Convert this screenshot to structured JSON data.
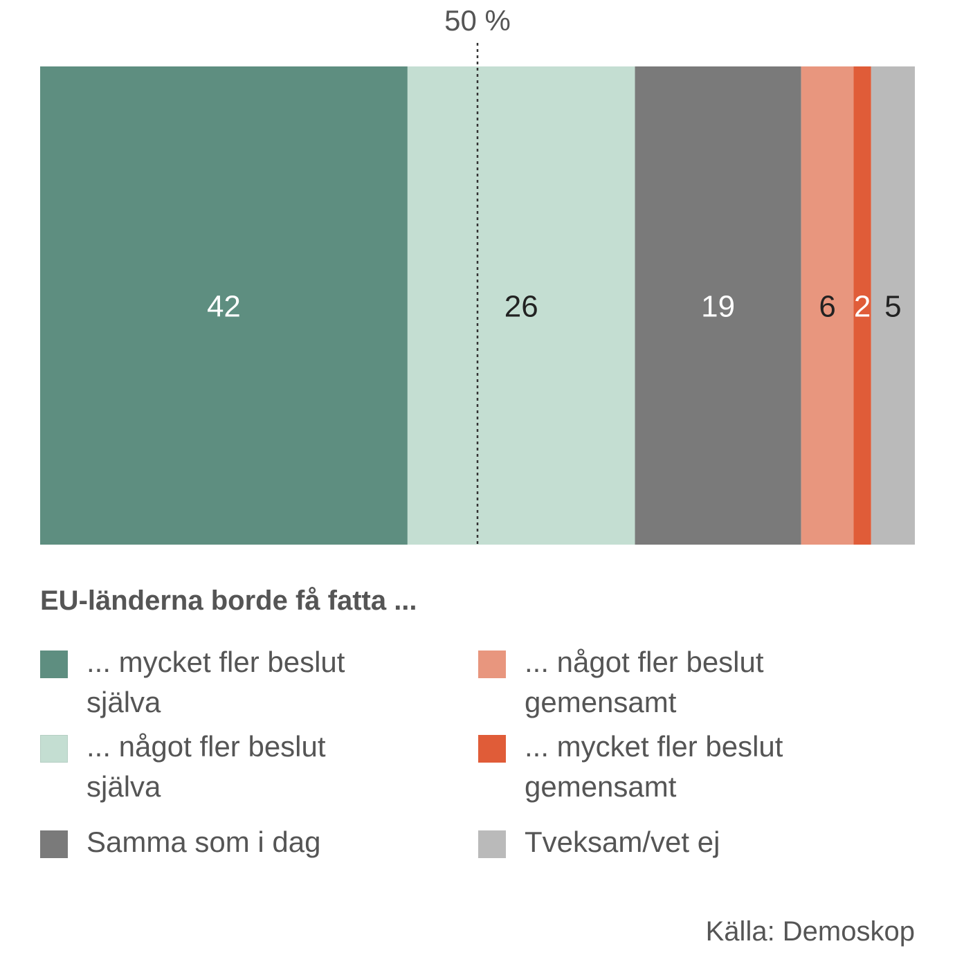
{
  "chart_data": {
    "type": "bar",
    "orientation": "horizontal-stacked",
    "xlim": [
      0,
      100
    ],
    "reference_line": {
      "value": 50,
      "label": "50 %"
    },
    "series": [
      {
        "name": "... mycket fler beslut själva",
        "value": 42,
        "label": "42",
        "color": "#5e8e80",
        "label_color": "#ffffff"
      },
      {
        "name": "... något fler beslut själva",
        "value": 26,
        "label": "26",
        "color": "#c4ded2",
        "label_color": "#222222"
      },
      {
        "name": "Samma som i dag",
        "value": 19,
        "label": "19",
        "color": "#7a7a7a",
        "label_color": "#ffffff"
      },
      {
        "name": "... något fler beslut gemensamt",
        "value": 6,
        "label": "6",
        "color": "#e8967e",
        "label_color": "#222222"
      },
      {
        "name": "... mycket fler beslut gemensamt",
        "value": 2,
        "label": "2",
        "color": "#e05c38",
        "label_color": "#ffffff"
      },
      {
        "name": "Tveksam/vet ej",
        "value": 5,
        "label": "5",
        "color": "#bababa",
        "label_color": "#222222"
      }
    ],
    "legend": {
      "title": "EU-länderna borde få fatta ...",
      "placement": "bottom"
    }
  },
  "source": "Källa: Demoskop"
}
